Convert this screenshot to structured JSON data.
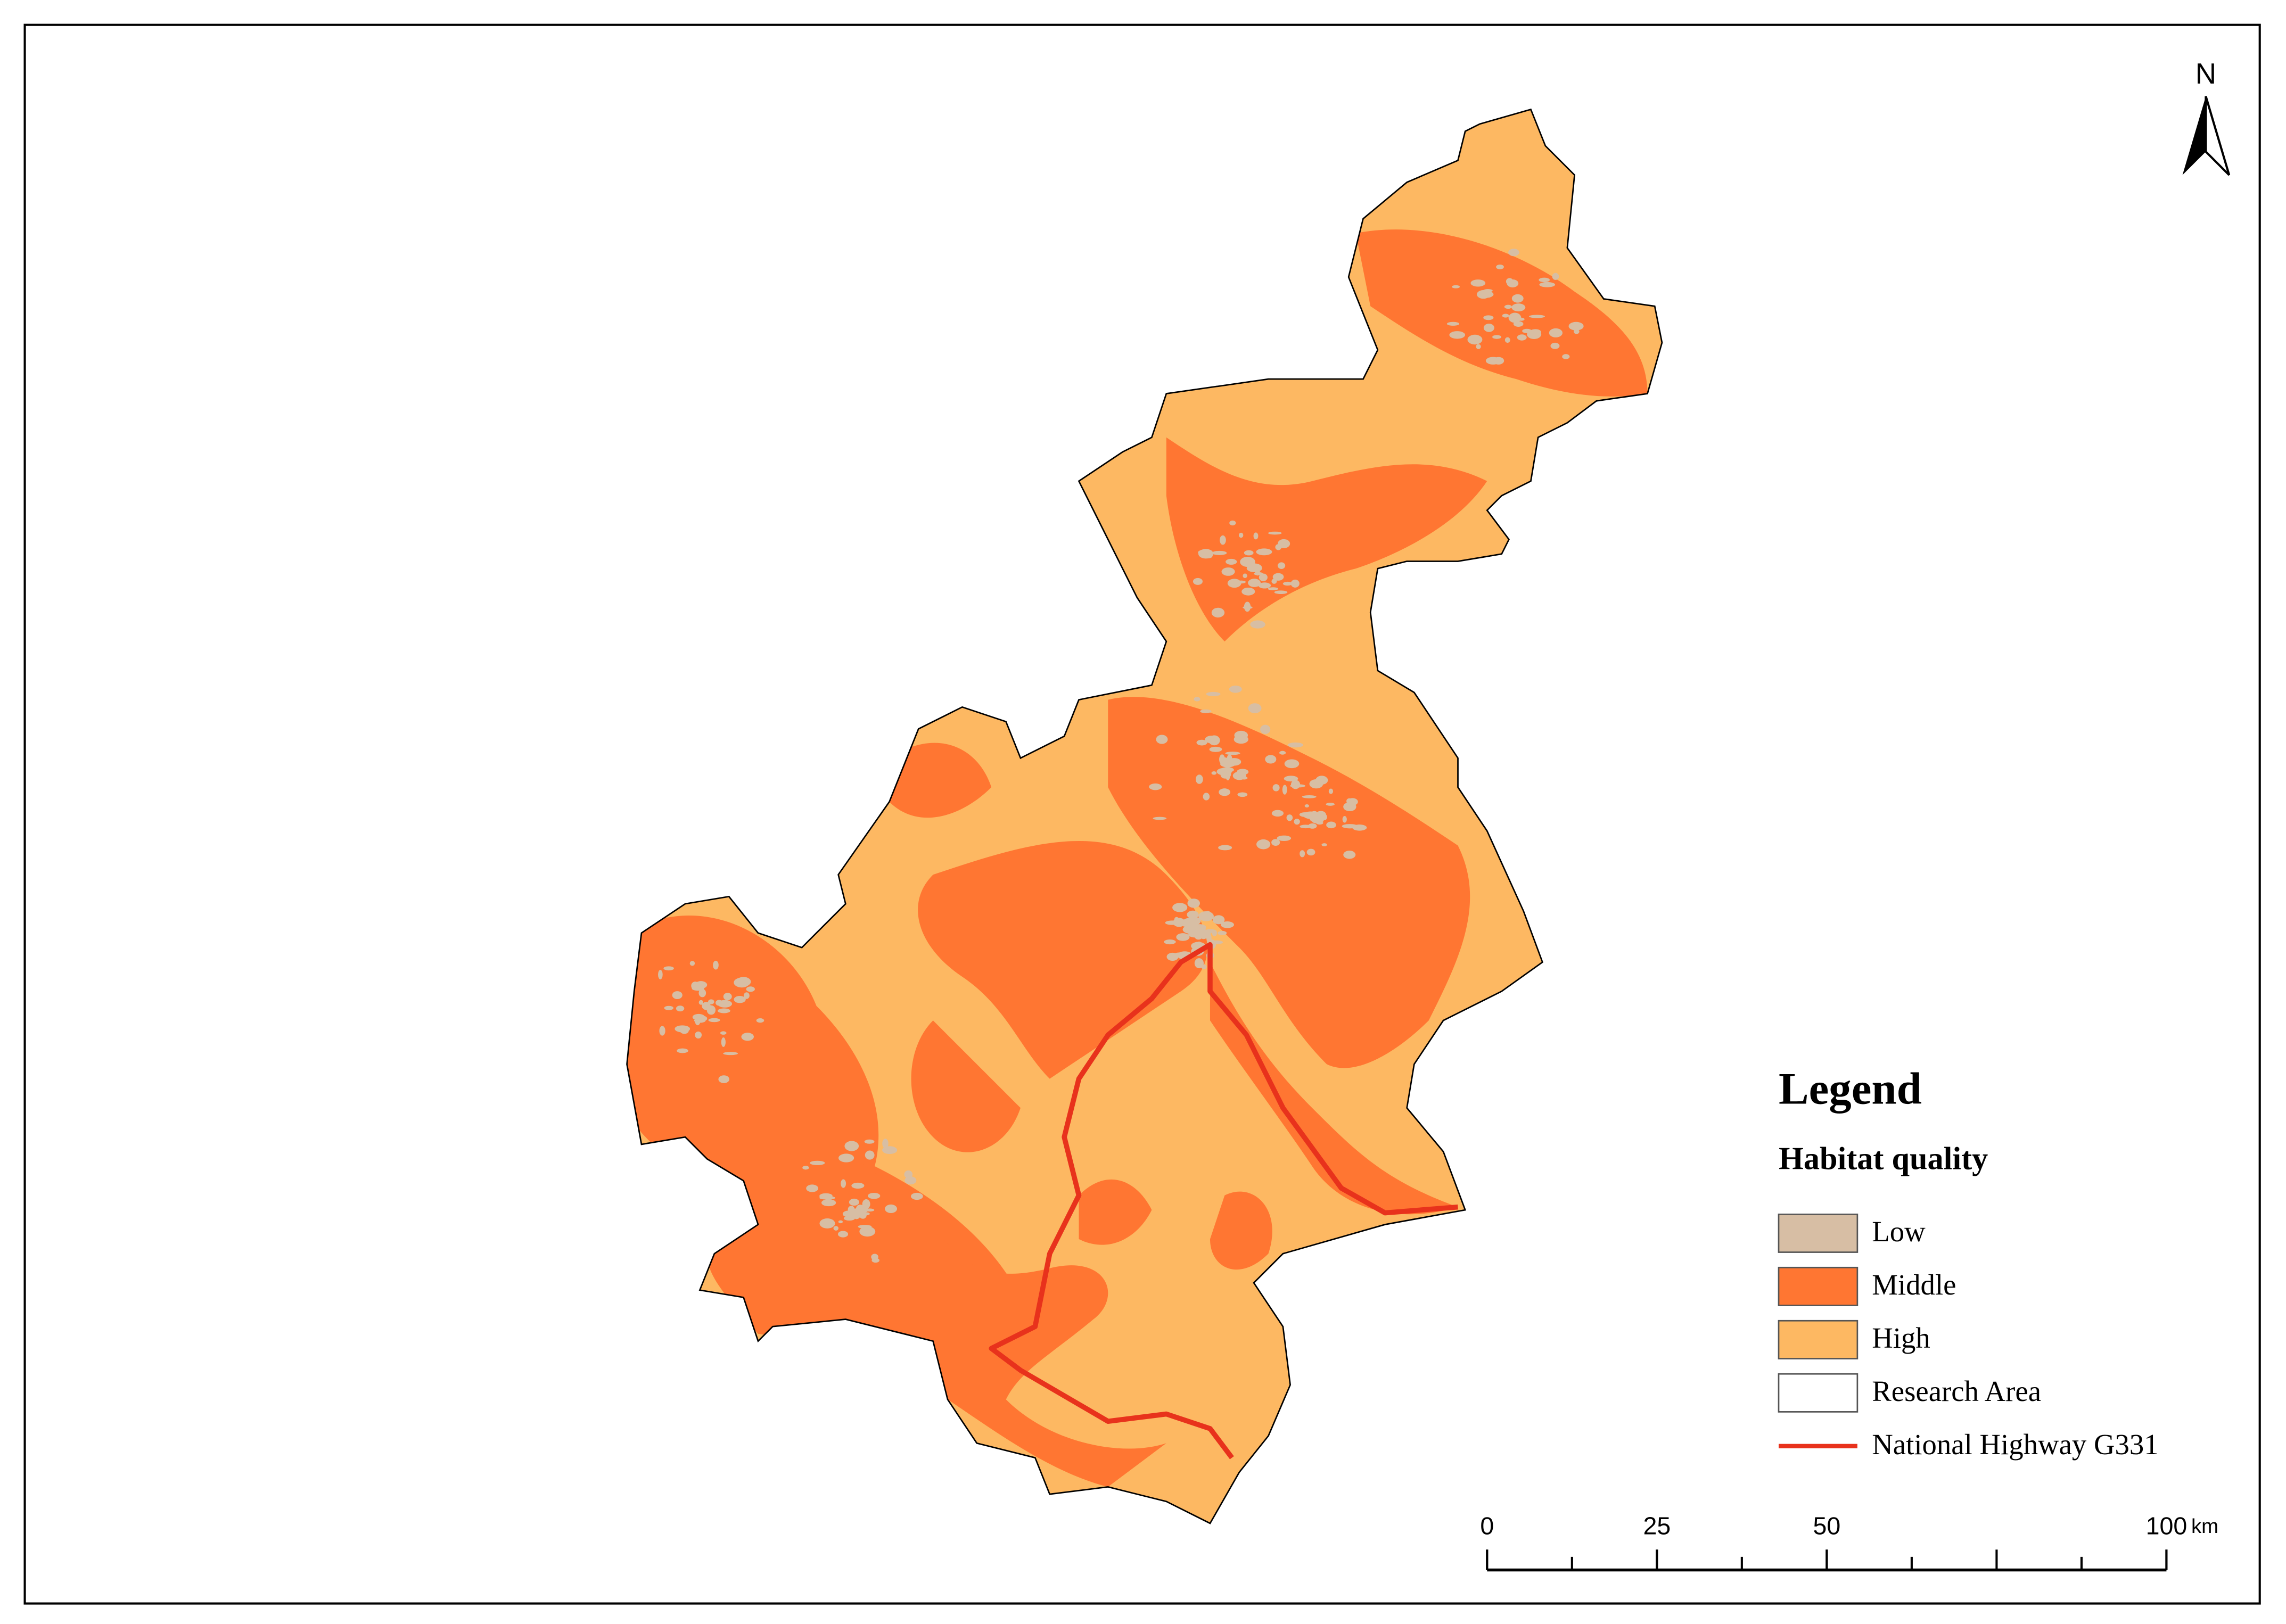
{
  "map": {
    "north": "N",
    "legend": {
      "title": "Legend",
      "subtitle": "Habitat quality",
      "items": [
        {
          "label": "Low",
          "color": "#d7bea4"
        },
        {
          "label": "Middle",
          "color": "#ff7632"
        },
        {
          "label": "High",
          "color": "#fdb862"
        },
        {
          "label": "Research Area",
          "color": "#ffffff"
        },
        {
          "label": "National Highway G331",
          "color": "#e8321c"
        }
      ]
    },
    "scale_bar": {
      "ticks": [
        0,
        25,
        50,
        100
      ],
      "unit": "km"
    }
  }
}
